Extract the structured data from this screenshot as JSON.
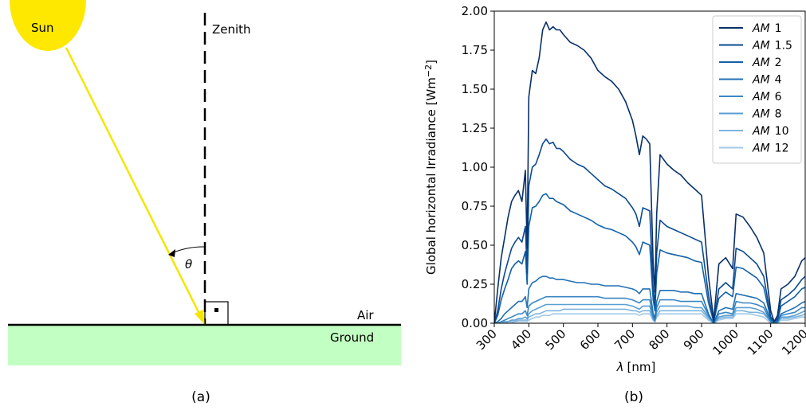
{
  "diagram": {
    "sun_label": "Sun",
    "zenith_label": "Zenith",
    "angle_label": "θ",
    "air_label": "Air",
    "ground_label": "Ground",
    "caption": "(a)",
    "colors": {
      "sun": "#FFE800",
      "ray": "#F5E600",
      "ground": "#C2FFC2"
    }
  },
  "chart_data": {
    "type": "line",
    "caption": "(b)",
    "title": "",
    "xlabel_symbol": "λ",
    "xlabel_unit": "[nm]",
    "ylabel": "Global horizontal Irradiance [Wm",
    "ylabel_sup": "−2",
    "ylabel_end": "]",
    "xlim": [
      300,
      1200
    ],
    "ylim": [
      0,
      2.0
    ],
    "xticks": [
      {
        "v": 300,
        "label": "300"
      },
      {
        "v": 400,
        "label": "400"
      },
      {
        "v": 500,
        "label": "500"
      },
      {
        "v": 600,
        "label": "600"
      },
      {
        "v": 700,
        "label": "700"
      },
      {
        "v": 800,
        "label": "800"
      },
      {
        "v": 900,
        "label": "900"
      },
      {
        "v": 1000,
        "label": "1000"
      },
      {
        "v": 1100,
        "label": "1100"
      },
      {
        "v": 1200,
        "label": "1200"
      }
    ],
    "yticks": [
      {
        "v": 0.0,
        "label": "0.00"
      },
      {
        "v": 0.25,
        "label": "0.25"
      },
      {
        "v": 0.5,
        "label": "0.50"
      },
      {
        "v": 0.75,
        "label": "0.75"
      },
      {
        "v": 1.0,
        "label": "1.00"
      },
      {
        "v": 1.25,
        "label": "1.25"
      },
      {
        "v": 1.5,
        "label": "1.50"
      },
      {
        "v": 1.75,
        "label": "1.75"
      },
      {
        "v": 2.0,
        "label": "2.00"
      }
    ],
    "legend_position": "top-right",
    "x": [
      300,
      310,
      320,
      330,
      340,
      350,
      360,
      370,
      380,
      390,
      395,
      400,
      410,
      420,
      430,
      440,
      450,
      460,
      470,
      480,
      490,
      500,
      520,
      540,
      560,
      580,
      600,
      620,
      640,
      660,
      680,
      700,
      710,
      720,
      730,
      740,
      750,
      760,
      765,
      770,
      780,
      790,
      800,
      820,
      840,
      860,
      880,
      900,
      920,
      935,
      950,
      970,
      990,
      1000,
      1020,
      1040,
      1060,
      1080,
      1100,
      1110,
      1120,
      1130,
      1150,
      1170,
      1190,
      1200
    ],
    "series": [
      {
        "name": "AM",
        "name_sub": "1",
        "color": "#08306b",
        "values": [
          0.0,
          0.22,
          0.42,
          0.55,
          0.68,
          0.78,
          0.82,
          0.85,
          0.78,
          0.98,
          0.48,
          1.45,
          1.62,
          1.6,
          1.7,
          1.88,
          1.93,
          1.88,
          1.9,
          1.88,
          1.88,
          1.85,
          1.8,
          1.78,
          1.75,
          1.7,
          1.62,
          1.58,
          1.55,
          1.5,
          1.42,
          1.3,
          1.2,
          1.08,
          1.2,
          1.18,
          1.15,
          0.38,
          0.2,
          0.7,
          1.08,
          1.05,
          1.02,
          0.98,
          0.95,
          0.9,
          0.86,
          0.82,
          0.3,
          0.02,
          0.38,
          0.42,
          0.35,
          0.7,
          0.68,
          0.62,
          0.55,
          0.45,
          0.08,
          0.01,
          0.05,
          0.22,
          0.25,
          0.3,
          0.4,
          0.42
        ]
      },
      {
        "name": "AM",
        "name_sub": "1.5",
        "color": "#0b4a91",
        "values": [
          0.0,
          0.08,
          0.22,
          0.32,
          0.4,
          0.48,
          0.52,
          0.55,
          0.52,
          0.62,
          0.32,
          0.88,
          1.0,
          1.02,
          1.08,
          1.15,
          1.18,
          1.15,
          1.16,
          1.12,
          1.12,
          1.1,
          1.05,
          1.02,
          1.0,
          0.96,
          0.92,
          0.88,
          0.86,
          0.83,
          0.8,
          0.74,
          0.7,
          0.62,
          0.74,
          0.73,
          0.72,
          0.22,
          0.12,
          0.45,
          0.66,
          0.64,
          0.62,
          0.6,
          0.58,
          0.56,
          0.54,
          0.52,
          0.18,
          0.01,
          0.22,
          0.26,
          0.22,
          0.48,
          0.46,
          0.42,
          0.38,
          0.3,
          0.04,
          0.01,
          0.03,
          0.15,
          0.18,
          0.22,
          0.28,
          0.3
        ]
      },
      {
        "name": "AM",
        "name_sub": "2",
        "color": "#1261a8",
        "values": [
          0.0,
          0.05,
          0.15,
          0.22,
          0.28,
          0.35,
          0.38,
          0.4,
          0.38,
          0.46,
          0.25,
          0.62,
          0.74,
          0.75,
          0.78,
          0.82,
          0.83,
          0.8,
          0.8,
          0.78,
          0.77,
          0.76,
          0.72,
          0.7,
          0.68,
          0.66,
          0.63,
          0.61,
          0.6,
          0.58,
          0.56,
          0.52,
          0.49,
          0.44,
          0.52,
          0.51,
          0.5,
          0.15,
          0.08,
          0.32,
          0.47,
          0.46,
          0.45,
          0.44,
          0.43,
          0.42,
          0.4,
          0.39,
          0.13,
          0.01,
          0.16,
          0.2,
          0.17,
          0.36,
          0.35,
          0.32,
          0.29,
          0.23,
          0.03,
          0.01,
          0.02,
          0.11,
          0.14,
          0.17,
          0.22,
          0.23
        ]
      },
      {
        "name": "AM",
        "name_sub": "4",
        "color": "#2171b5",
        "values": [
          0.0,
          0.01,
          0.03,
          0.06,
          0.08,
          0.1,
          0.12,
          0.14,
          0.14,
          0.17,
          0.1,
          0.22,
          0.26,
          0.27,
          0.29,
          0.3,
          0.3,
          0.29,
          0.29,
          0.28,
          0.28,
          0.28,
          0.27,
          0.26,
          0.26,
          0.25,
          0.25,
          0.24,
          0.24,
          0.24,
          0.23,
          0.22,
          0.21,
          0.19,
          0.22,
          0.22,
          0.22,
          0.06,
          0.03,
          0.14,
          0.21,
          0.21,
          0.21,
          0.21,
          0.2,
          0.2,
          0.19,
          0.19,
          0.06,
          0.0,
          0.08,
          0.1,
          0.09,
          0.19,
          0.18,
          0.17,
          0.16,
          0.13,
          0.02,
          0.0,
          0.01,
          0.06,
          0.08,
          0.1,
          0.13,
          0.14
        ]
      },
      {
        "name": "AM",
        "name_sub": "6",
        "color": "#3a87c4",
        "values": [
          0.0,
          0.0,
          0.01,
          0.02,
          0.03,
          0.04,
          0.05,
          0.06,
          0.06,
          0.08,
          0.05,
          0.11,
          0.13,
          0.14,
          0.15,
          0.16,
          0.17,
          0.17,
          0.17,
          0.17,
          0.17,
          0.17,
          0.17,
          0.17,
          0.17,
          0.17,
          0.17,
          0.16,
          0.16,
          0.16,
          0.16,
          0.15,
          0.14,
          0.13,
          0.15,
          0.15,
          0.15,
          0.04,
          0.02,
          0.1,
          0.15,
          0.15,
          0.15,
          0.15,
          0.14,
          0.14,
          0.14,
          0.14,
          0.05,
          0.0,
          0.06,
          0.07,
          0.06,
          0.14,
          0.13,
          0.13,
          0.12,
          0.1,
          0.01,
          0.0,
          0.01,
          0.05,
          0.06,
          0.07,
          0.1,
          0.1
        ]
      },
      {
        "name": "AM",
        "name_sub": "8",
        "color": "#5a9fd2",
        "values": [
          0.0,
          0.0,
          0.0,
          0.01,
          0.01,
          0.02,
          0.02,
          0.03,
          0.03,
          0.04,
          0.03,
          0.06,
          0.08,
          0.09,
          0.1,
          0.11,
          0.12,
          0.12,
          0.12,
          0.12,
          0.12,
          0.12,
          0.12,
          0.12,
          0.12,
          0.12,
          0.12,
          0.12,
          0.12,
          0.12,
          0.12,
          0.11,
          0.1,
          0.09,
          0.11,
          0.11,
          0.11,
          0.03,
          0.01,
          0.07,
          0.11,
          0.11,
          0.11,
          0.11,
          0.11,
          0.11,
          0.1,
          0.1,
          0.04,
          0.0,
          0.04,
          0.05,
          0.05,
          0.1,
          0.1,
          0.1,
          0.09,
          0.07,
          0.01,
          0.0,
          0.01,
          0.04,
          0.04,
          0.05,
          0.07,
          0.08
        ]
      },
      {
        "name": "AM",
        "name_sub": "10",
        "color": "#7db5de",
        "values": [
          0.0,
          0.0,
          0.0,
          0.0,
          0.01,
          0.01,
          0.01,
          0.02,
          0.02,
          0.02,
          0.02,
          0.04,
          0.05,
          0.06,
          0.06,
          0.07,
          0.08,
          0.08,
          0.08,
          0.08,
          0.08,
          0.09,
          0.09,
          0.09,
          0.09,
          0.09,
          0.09,
          0.09,
          0.09,
          0.09,
          0.09,
          0.08,
          0.08,
          0.07,
          0.08,
          0.08,
          0.08,
          0.02,
          0.01,
          0.05,
          0.08,
          0.08,
          0.08,
          0.08,
          0.08,
          0.08,
          0.08,
          0.08,
          0.03,
          0.0,
          0.03,
          0.04,
          0.04,
          0.08,
          0.08,
          0.07,
          0.07,
          0.06,
          0.01,
          0.0,
          0.0,
          0.03,
          0.03,
          0.04,
          0.05,
          0.06
        ]
      },
      {
        "name": "AM",
        "name_sub": "12",
        "color": "#a3c9e8",
        "values": [
          0.0,
          0.0,
          0.0,
          0.0,
          0.0,
          0.0,
          0.01,
          0.01,
          0.01,
          0.01,
          0.01,
          0.02,
          0.03,
          0.04,
          0.04,
          0.05,
          0.05,
          0.05,
          0.06,
          0.06,
          0.06,
          0.06,
          0.06,
          0.06,
          0.06,
          0.06,
          0.06,
          0.06,
          0.06,
          0.06,
          0.06,
          0.06,
          0.06,
          0.05,
          0.06,
          0.06,
          0.06,
          0.02,
          0.01,
          0.04,
          0.06,
          0.06,
          0.06,
          0.06,
          0.06,
          0.06,
          0.06,
          0.06,
          0.02,
          0.0,
          0.02,
          0.03,
          0.03,
          0.06,
          0.06,
          0.06,
          0.05,
          0.04,
          0.0,
          0.0,
          0.0,
          0.02,
          0.02,
          0.03,
          0.04,
          0.04
        ]
      }
    ]
  }
}
